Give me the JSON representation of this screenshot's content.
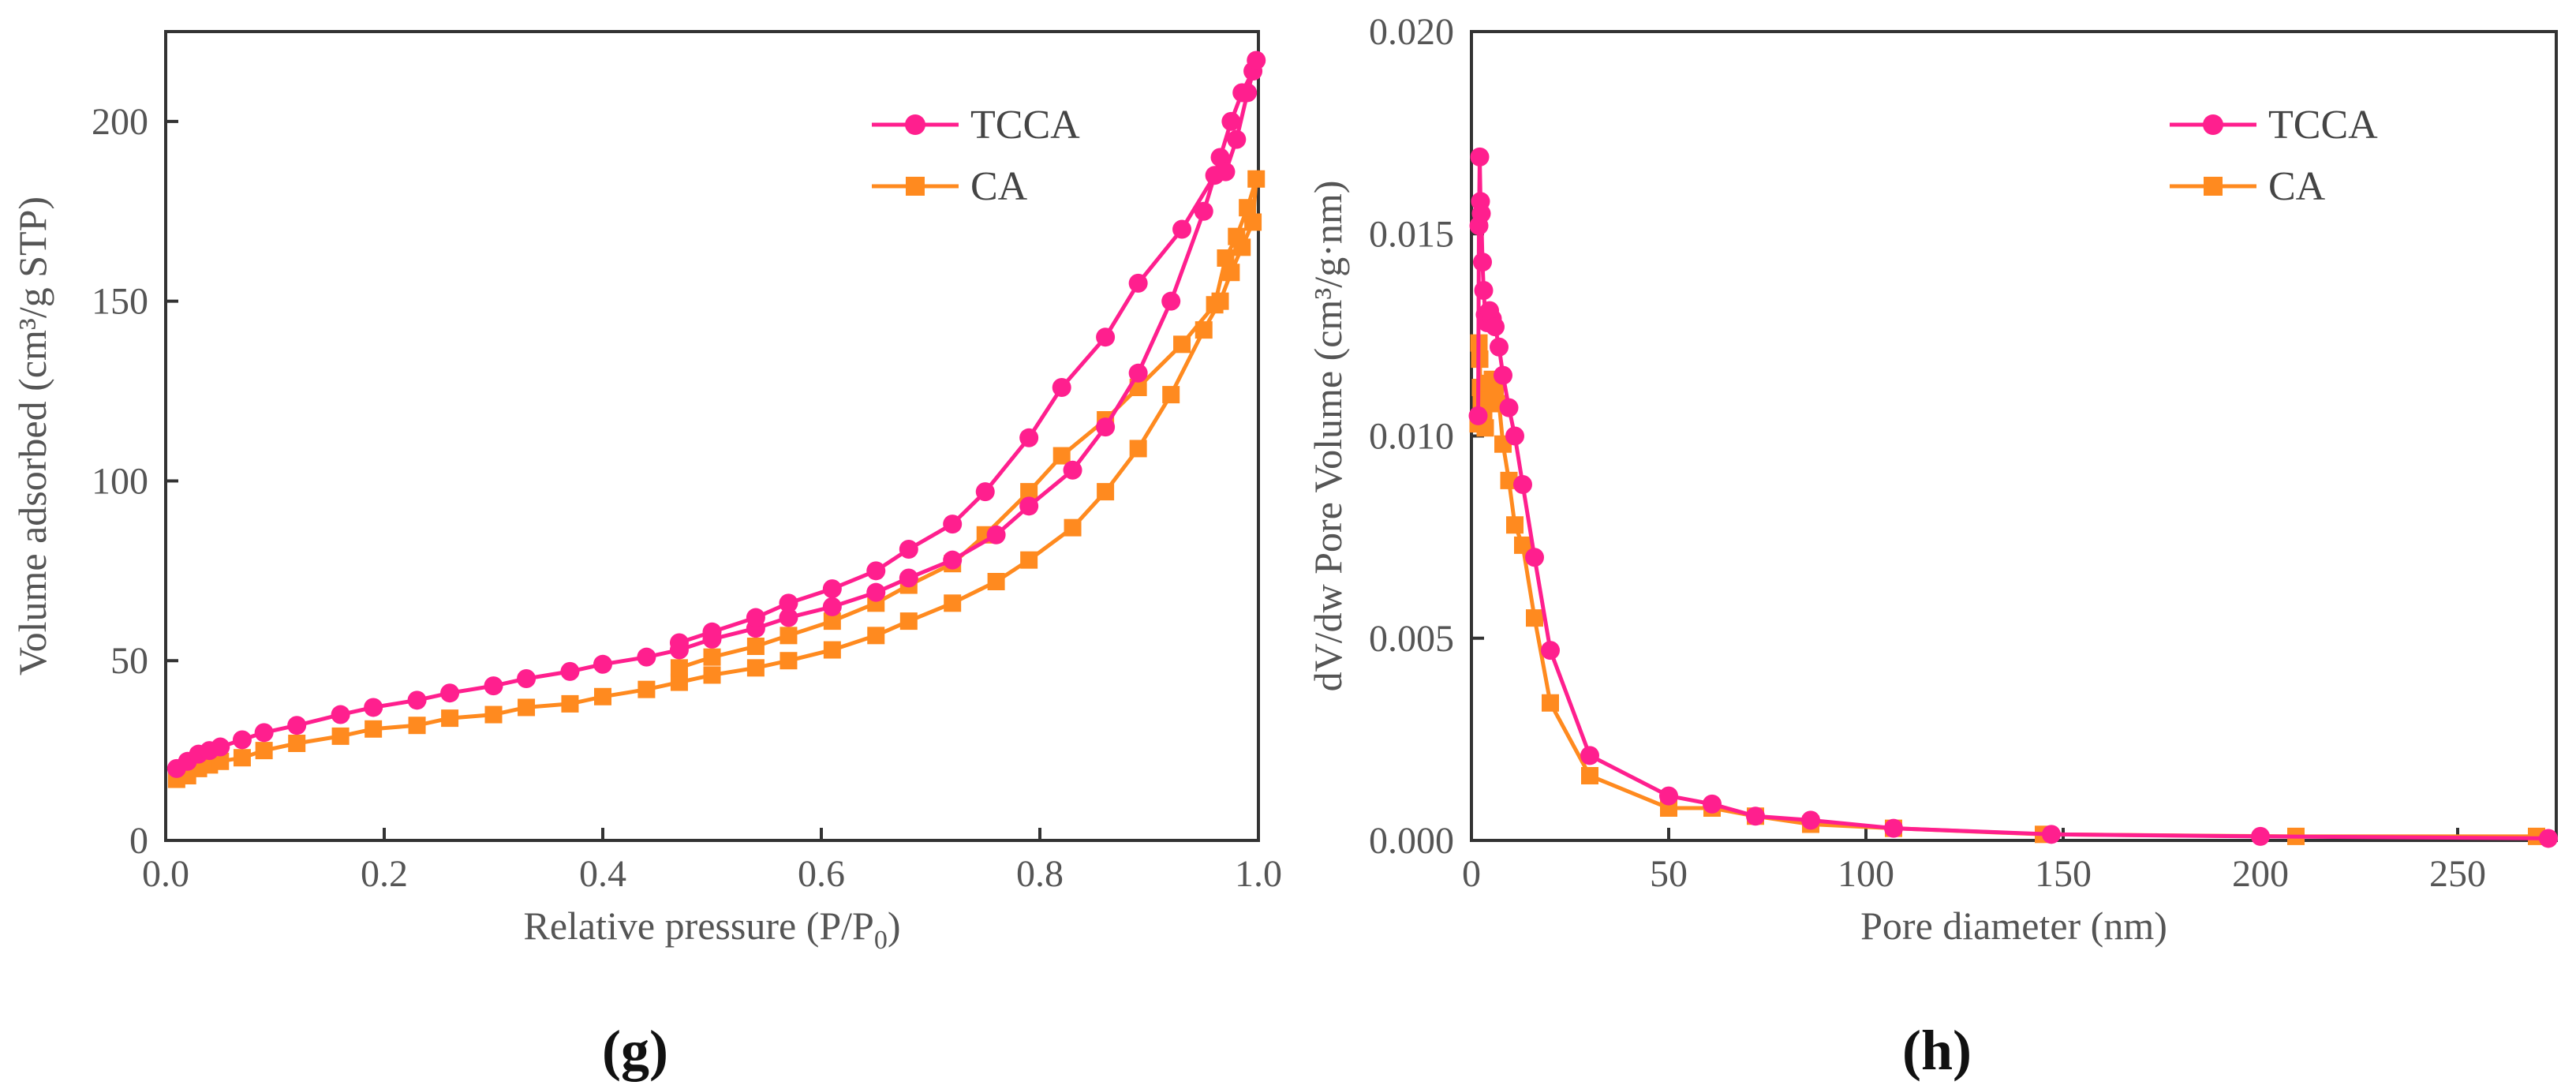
{
  "figure_labels": [
    "(g)",
    "(h)"
  ],
  "chart_data": [
    {
      "type": "line",
      "panel": "(g)",
      "title": "",
      "xlabel": "Relative pressure (P/P0)",
      "xlabel_main": "Relative pressure (P/P",
      "xlabel_sub": "0",
      "xlabel_end": ")",
      "ylabel": "Volume adsorbed (cm³/g STP)",
      "xlim": [
        0,
        1.0
      ],
      "ylim": [
        0,
        225
      ],
      "xticks": [
        0.0,
        0.2,
        0.4,
        0.6,
        0.8,
        1.0
      ],
      "xtick_labels": [
        "0.0",
        "0.2",
        "0.4",
        "0.6",
        "0.8",
        "1.0"
      ],
      "yticks": [
        0,
        50,
        100,
        150,
        200
      ],
      "ytick_labels": [
        "0",
        "50",
        "100",
        "150",
        "200"
      ],
      "legend": "top-right",
      "series": [
        {
          "name": "TCCA",
          "color": "#ff1f8e",
          "marker": "circle",
          "x": [
            0.01,
            0.02,
            0.03,
            0.04,
            0.05,
            0.07,
            0.09,
            0.12,
            0.16,
            0.19,
            0.23,
            0.26,
            0.3,
            0.33,
            0.37,
            0.4,
            0.44,
            0.47,
            0.5,
            0.54,
            0.57,
            0.61,
            0.65,
            0.68,
            0.72,
            0.76,
            0.79,
            0.83,
            0.86,
            0.89,
            0.92,
            0.95,
            0.965,
            0.975,
            0.985,
            0.995,
            0.998,
            0.99,
            0.98,
            0.97,
            0.96,
            0.93,
            0.89,
            0.86,
            0.82,
            0.79,
            0.75,
            0.72,
            0.68,
            0.65,
            0.61,
            0.57,
            0.54,
            0.5,
            0.47
          ],
          "y": [
            20,
            22,
            24,
            25,
            26,
            28,
            30,
            32,
            35,
            37,
            39,
            41,
            43,
            45,
            47,
            49,
            51,
            53,
            56,
            59,
            62,
            65,
            69,
            73,
            78,
            85,
            93,
            103,
            115,
            130,
            150,
            175,
            190,
            200,
            208,
            214,
            217,
            208,
            195,
            186,
            185,
            170,
            155,
            140,
            126,
            112,
            97,
            88,
            81,
            75,
            70,
            66,
            62,
            58,
            55
          ]
        },
        {
          "name": "CA",
          "color": "#ff8a1f",
          "marker": "square",
          "x": [
            0.01,
            0.02,
            0.03,
            0.04,
            0.05,
            0.07,
            0.09,
            0.12,
            0.16,
            0.19,
            0.23,
            0.26,
            0.3,
            0.33,
            0.37,
            0.4,
            0.44,
            0.47,
            0.5,
            0.54,
            0.57,
            0.61,
            0.65,
            0.68,
            0.72,
            0.76,
            0.79,
            0.83,
            0.86,
            0.89,
            0.92,
            0.95,
            0.965,
            0.975,
            0.985,
            0.995,
            0.998,
            0.99,
            0.98,
            0.97,
            0.96,
            0.93,
            0.89,
            0.86,
            0.82,
            0.79,
            0.75,
            0.72,
            0.68,
            0.65,
            0.61,
            0.57,
            0.54,
            0.5,
            0.47
          ],
          "y": [
            17,
            18,
            20,
            21,
            22,
            23,
            25,
            27,
            29,
            31,
            32,
            34,
            35,
            37,
            38,
            40,
            42,
            44,
            46,
            48,
            50,
            53,
            57,
            61,
            66,
            72,
            78,
            87,
            97,
            109,
            124,
            142,
            150,
            158,
            165,
            172,
            184,
            176,
            168,
            162,
            149,
            138,
            126,
            117,
            107,
            97,
            85,
            77,
            71,
            66,
            61,
            57,
            54,
            51,
            48
          ]
        }
      ]
    },
    {
      "type": "line",
      "panel": "(h)",
      "title": "",
      "xlabel": "Pore diameter (nm)",
      "ylabel": "dV/dw Pore Volume (cm³/g·nm)",
      "xlim": [
        0,
        275
      ],
      "ylim": [
        0,
        0.02
      ],
      "xticks": [
        0,
        50,
        100,
        150,
        200,
        250
      ],
      "xtick_labels": [
        "0",
        "50",
        "100",
        "150",
        "200",
        "250"
      ],
      "yticks": [
        0.0,
        0.005,
        0.01,
        0.015,
        0.02
      ],
      "ytick_labels": [
        "0.000",
        "0.005",
        "0.010",
        "0.015",
        "0.020"
      ],
      "legend": "top-right",
      "series": [
        {
          "name": "TCCA",
          "color": "#ff1f8e",
          "marker": "circle",
          "x": [
            1.7,
            1.9,
            2.1,
            2.3,
            2.5,
            2.8,
            3.1,
            3.5,
            4,
            4.6,
            5.3,
            6,
            7,
            8,
            9.5,
            11,
            13,
            16,
            20,
            30,
            50,
            61,
            72,
            86,
            107,
            147,
            200,
            273
          ],
          "y": [
            0.0105,
            0.0152,
            0.0169,
            0.0158,
            0.0155,
            0.0143,
            0.0136,
            0.013,
            0.0128,
            0.0131,
            0.0129,
            0.0127,
            0.0122,
            0.0115,
            0.0107,
            0.01,
            0.0088,
            0.007,
            0.0047,
            0.0021,
            0.0011,
            0.0009,
            0.0006,
            0.0005,
            0.0003,
            0.00015,
            0.0001,
            5e-05
          ]
        },
        {
          "name": "CA",
          "color": "#ff8a1f",
          "marker": "square",
          "x": [
            1.7,
            1.9,
            2.1,
            2.3,
            2.5,
            2.8,
            3.1,
            3.5,
            4,
            4.6,
            5.3,
            6,
            7,
            8,
            9.5,
            11,
            13,
            16,
            20,
            30,
            50,
            61,
            72,
            86,
            107,
            145,
            209,
            270
          ],
          "y": [
            0.0103,
            0.0123,
            0.0119,
            0.0112,
            0.0108,
            0.0106,
            0.0104,
            0.0102,
            0.011,
            0.0113,
            0.0114,
            0.0112,
            0.0108,
            0.0098,
            0.0089,
            0.0078,
            0.0073,
            0.0055,
            0.0034,
            0.0016,
            0.0008,
            0.0008,
            0.0006,
            0.0004,
            0.0003,
            0.00015,
            0.0001,
            0.0001
          ]
        }
      ]
    }
  ]
}
